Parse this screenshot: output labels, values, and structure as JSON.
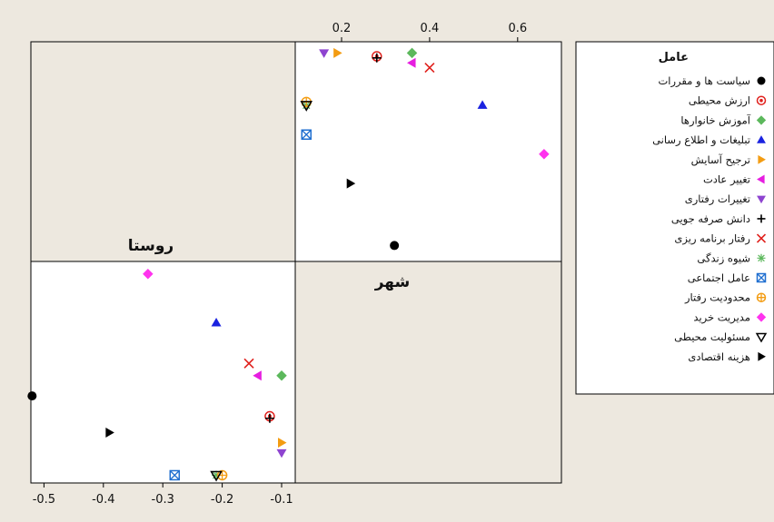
{
  "chart_data": {
    "type": "scatter",
    "panels": [
      {
        "label": "شهر",
        "x_ticks": [
          0.2,
          0.4,
          0.6
        ],
        "points": {
          "سیاست ها و مقررات": [
            0.32,
            0.01
          ],
          "ارزش محیطی": [
            0.28,
            0.59
          ],
          "آموزش خانوارها": [
            0.36,
            0.6
          ],
          "تبلیغات و اطلاع رسانی": [
            0.52,
            0.44
          ],
          "ترجیح آسایش": [
            0.19,
            0.6
          ],
          "تغییر عادت": [
            0.36,
            0.57
          ],
          "تغییرات رفتاری": [
            0.16,
            0.6
          ],
          "دانش صرفه جویی": [
            0.28,
            0.585
          ],
          "رفتار برنامه ریزی": [
            0.4,
            0.555
          ],
          "شیوه زندگی": [
            0.12,
            0.44
          ],
          "عامل اجتماعی": [
            0.12,
            0.35
          ],
          "محدودیت رفتار": [
            0.12,
            0.45
          ],
          "مدیریت خرید": [
            0.66,
            0.29
          ],
          "مسئولیت محیطی": [
            0.12,
            0.44
          ],
          "هزینه اقتصادی": [
            0.22,
            0.2
          ]
        }
      },
      {
        "label": "روستا",
        "x_ticks": [
          -0.5,
          -0.4,
          -0.3,
          -0.2,
          -0.1
        ],
        "points": {
          "سیاست ها و مقررات": [
            -0.52,
            0.185
          ],
          "ارزش محیطی": [
            -0.12,
            0.135
          ],
          "آموزش خانوارها": [
            -0.1,
            0.235
          ],
          "تبلیغات و اطلاع رسانی": [
            -0.21,
            0.365
          ],
          "ترجیح آسایش": [
            -0.1,
            0.07
          ],
          "تغییر عادت": [
            -0.14,
            0.235
          ],
          "تغییرات رفتاری": [
            -0.1,
            0.045
          ],
          "دانش صرفه جویی": [
            -0.12,
            0.13
          ],
          "رفتار برنامه ریزی": [
            -0.155,
            0.265
          ],
          "شیوه زندگی": [
            -0.21,
            -0.01
          ],
          "عامل اجتماعی": [
            -0.28,
            -0.01
          ],
          "محدودیت رفتار": [
            -0.2,
            -0.01
          ],
          "مدیریت خرید": [
            -0.325,
            0.485
          ],
          "مسئولیت محیطی": [
            -0.21,
            -0.01
          ],
          "هزینه اقتصادی": [
            -0.39,
            0.095
          ]
        }
      }
    ],
    "legend": {
      "title": "عامل",
      "position": "right",
      "entries": [
        {
          "label": "سیاست ها و مقررات",
          "marker": "circle",
          "color": "#000000"
        },
        {
          "label": "ارزش محیطی",
          "marker": "circle-dot",
          "color": "#e0201c"
        },
        {
          "label": "آموزش خانوارها",
          "marker": "diamond",
          "color": "#5cb85c"
        },
        {
          "label": "تبلیغات و اطلاع رسانی",
          "marker": "triangle-up",
          "color": "#1a22e0"
        },
        {
          "label": "ترجیح آسایش",
          "marker": "triangle-right",
          "color": "#f39c12"
        },
        {
          "label": "تغییر عادت",
          "marker": "triangle-left",
          "color": "#e61ee0"
        },
        {
          "label": "تغییرات رفتاری",
          "marker": "triangle-down",
          "color": "#8e44d0"
        },
        {
          "label": "دانش صرفه جویی",
          "marker": "plus",
          "color": "#000000"
        },
        {
          "label": "رفتار برنامه ریزی",
          "marker": "x",
          "color": "#e0201c"
        },
        {
          "label": "شیوه زندگی",
          "marker": "asterisk",
          "color": "#5cb85c"
        },
        {
          "label": "عامل اجتماعی",
          "marker": "square-x",
          "color": "#1f6fd0"
        },
        {
          "label": "محدودیت رفتار",
          "marker": "circle-plus",
          "color": "#f39c12"
        },
        {
          "label": "مدیریت خرید",
          "marker": "diamond",
          "color": "#ff33ee"
        },
        {
          "label": "مسئولیت محیطی",
          "marker": "triangle-down-open",
          "color": "#000000"
        },
        {
          "label": "هزینه اقتصادی",
          "marker": "triangle-right",
          "color": "#000000"
        }
      ]
    }
  }
}
